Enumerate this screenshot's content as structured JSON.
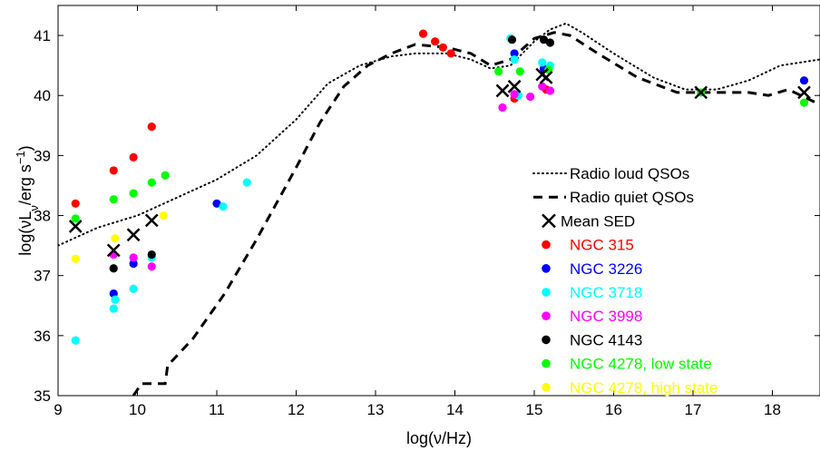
{
  "chart_data": {
    "type": "scatter",
    "title": "",
    "xlabel": "log(ν/Hz)",
    "ylabel": "log(νL_ν/erg s^−1)",
    "ylabel_parts": {
      "main": "log(νL",
      "sub": "ν",
      "mid": "/erg s",
      "sup": "−1",
      "end": ")"
    },
    "xlim": [
      9,
      18.6
    ],
    "ylim": [
      35,
      41.5
    ],
    "xticks": [
      9,
      10,
      11,
      12,
      13,
      14,
      15,
      16,
      17,
      18
    ],
    "yticks": [
      35,
      36,
      37,
      38,
      39,
      40,
      41
    ],
    "grid": false,
    "legend_position": "right",
    "lines": [
      {
        "name": "Radio loud QSOs",
        "style": "dotted",
        "points": [
          [
            9,
            37.5
          ],
          [
            9.5,
            37.8
          ],
          [
            10,
            38.0
          ],
          [
            10.5,
            38.3
          ],
          [
            11,
            38.6
          ],
          [
            11.5,
            39.0
          ],
          [
            12,
            39.6
          ],
          [
            12.4,
            40.2
          ],
          [
            12.8,
            40.5
          ],
          [
            13.2,
            40.65
          ],
          [
            13.5,
            40.7
          ],
          [
            13.9,
            40.7
          ],
          [
            14.2,
            40.6
          ],
          [
            14.45,
            40.45
          ],
          [
            14.7,
            40.5
          ],
          [
            15.0,
            40.9
          ],
          [
            15.2,
            41.1
          ],
          [
            15.4,
            41.2
          ],
          [
            15.6,
            41.05
          ],
          [
            16.0,
            40.7
          ],
          [
            16.5,
            40.3
          ],
          [
            16.9,
            40.1
          ],
          [
            17.3,
            40.1
          ],
          [
            17.7,
            40.25
          ],
          [
            18.1,
            40.5
          ],
          [
            18.6,
            40.6
          ]
        ]
      },
      {
        "name": "Radio quiet QSOs",
        "style": "dashed",
        "points": [
          [
            9.95,
            35.0
          ],
          [
            10.05,
            35.2
          ],
          [
            10.35,
            35.2
          ],
          [
            10.38,
            35.5
          ],
          [
            10.7,
            35.95
          ],
          [
            11.1,
            36.7
          ],
          [
            11.5,
            37.6
          ],
          [
            12,
            38.8
          ],
          [
            12.3,
            39.55
          ],
          [
            12.6,
            40.15
          ],
          [
            12.9,
            40.5
          ],
          [
            13.2,
            40.7
          ],
          [
            13.5,
            40.85
          ],
          [
            13.9,
            40.8
          ],
          [
            14.2,
            40.7
          ],
          [
            14.45,
            40.5
          ],
          [
            14.7,
            40.6
          ],
          [
            15.0,
            40.95
          ],
          [
            15.25,
            41.05
          ],
          [
            15.45,
            41.0
          ],
          [
            15.8,
            40.7
          ],
          [
            16.3,
            40.3
          ],
          [
            16.8,
            40.05
          ],
          [
            17.3,
            40.05
          ],
          [
            17.7,
            40.05
          ],
          [
            17.95,
            40.0
          ],
          [
            18.2,
            40.1
          ],
          [
            18.6,
            39.85
          ]
        ]
      }
    ],
    "series": [
      {
        "name": "Mean SED",
        "marker": "x",
        "color": "#000000",
        "points": [
          [
            9.22,
            37.82
          ],
          [
            9.7,
            37.42
          ],
          [
            9.95,
            37.68
          ],
          [
            10.18,
            37.92
          ],
          [
            14.6,
            40.08
          ],
          [
            14.75,
            40.15
          ],
          [
            15.1,
            40.35
          ],
          [
            15.15,
            40.3
          ],
          [
            17.1,
            40.05
          ],
          [
            18.4,
            40.05
          ]
        ]
      },
      {
        "name": "NGC 315",
        "marker": "dot",
        "color": "#ff0000",
        "points": [
          [
            9.22,
            38.2
          ],
          [
            9.7,
            38.75
          ],
          [
            9.95,
            38.97
          ],
          [
            10.18,
            39.48
          ],
          [
            13.6,
            41.03
          ],
          [
            13.75,
            40.9
          ],
          [
            13.85,
            40.8
          ],
          [
            13.95,
            40.7
          ],
          [
            14.75,
            39.95
          ],
          [
            15.15,
            40.1
          ]
        ]
      },
      {
        "name": "NGC 3226",
        "marker": "dot",
        "color": "#0000ff",
        "points": [
          [
            9.7,
            36.7
          ],
          [
            9.95,
            37.2
          ],
          [
            11.0,
            38.2
          ],
          [
            14.75,
            40.7
          ],
          [
            15.12,
            40.45
          ],
          [
            18.4,
            40.25
          ]
        ]
      },
      {
        "name": "NGC 3718",
        "marker": "dot",
        "color": "#00ffff",
        "points": [
          [
            9.22,
            35.92
          ],
          [
            9.7,
            36.45
          ],
          [
            9.72,
            36.6
          ],
          [
            9.95,
            36.78
          ],
          [
            10.18,
            37.3
          ],
          [
            11.08,
            38.15
          ],
          [
            11.38,
            38.55
          ],
          [
            14.7,
            40.95
          ],
          [
            14.75,
            40.6
          ],
          [
            14.8,
            40.0
          ],
          [
            15.1,
            40.55
          ],
          [
            15.2,
            40.5
          ]
        ]
      },
      {
        "name": "NGC 3998",
        "marker": "dot",
        "color": "#ff00ff",
        "points": [
          [
            9.7,
            37.35
          ],
          [
            9.95,
            37.3
          ],
          [
            10.18,
            37.15
          ],
          [
            14.6,
            39.8
          ],
          [
            14.95,
            39.98
          ],
          [
            15.1,
            40.15
          ],
          [
            15.2,
            40.08
          ],
          [
            14.75,
            40.02
          ]
        ]
      },
      {
        "name": "NGC 4143",
        "marker": "dot",
        "color": "#000000",
        "points": [
          [
            9.7,
            37.12
          ],
          [
            10.18,
            37.35
          ],
          [
            14.72,
            40.93
          ],
          [
            15.12,
            40.93
          ],
          [
            15.2,
            40.88
          ]
        ]
      },
      {
        "name": "NGC 4278, low state",
        "marker": "dot",
        "color": "#00ff00",
        "points": [
          [
            9.22,
            37.95
          ],
          [
            9.7,
            38.27
          ],
          [
            9.95,
            38.37
          ],
          [
            10.18,
            38.55
          ],
          [
            10.35,
            38.67
          ],
          [
            14.55,
            40.4
          ],
          [
            14.82,
            40.4
          ],
          [
            15.18,
            40.43
          ],
          [
            17.1,
            40.05
          ],
          [
            18.4,
            39.88
          ]
        ]
      },
      {
        "name": "NGC 4278, high state",
        "marker": "dot",
        "color": "#ffff00",
        "points": [
          [
            9.22,
            37.28
          ],
          [
            9.72,
            37.62
          ],
          [
            10.33,
            38.0
          ]
        ]
      }
    ]
  }
}
